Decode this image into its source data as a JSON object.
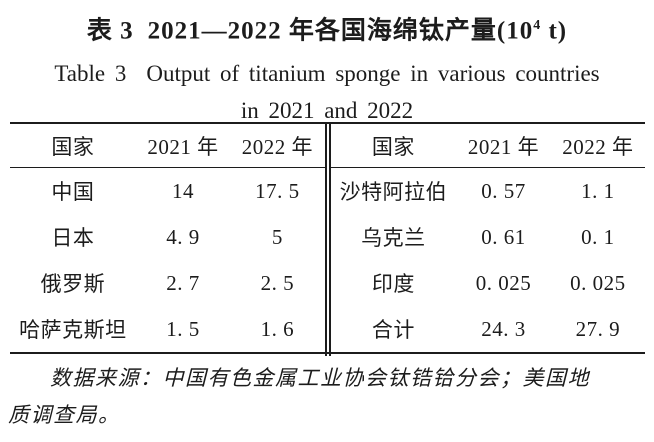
{
  "title": {
    "zh_label": "表 3",
    "zh_main": "2021—2022 年各国海绵钛产量(10",
    "zh_sup": "4",
    "zh_tail": " t)",
    "en_label": "Table 3",
    "en_main": "Output of titanium sponge in various countries",
    "en_line2": "in 2021 and 2022"
  },
  "table": {
    "left": {
      "headers": [
        "国家",
        "2021 年",
        "2022 年"
      ],
      "rows": [
        [
          "中国",
          "14",
          "17. 5"
        ],
        [
          "日本",
          "4. 9",
          "5"
        ],
        [
          "俄罗斯",
          "2. 7",
          "2. 5"
        ],
        [
          "哈萨克斯坦",
          "1. 5",
          "1. 6"
        ]
      ]
    },
    "right": {
      "headers": [
        "国家",
        "2021 年",
        "2022 年"
      ],
      "rows": [
        [
          "沙特阿拉伯",
          "0. 57",
          "1. 1"
        ],
        [
          "乌克兰",
          "0. 61",
          "0. 1"
        ],
        [
          "印度",
          "0. 025",
          "0. 025"
        ],
        [
          "合计",
          "24. 3",
          "27. 9"
        ]
      ]
    }
  },
  "source": {
    "line1": "数据来源：中国有色金属工业协会钛锆铪分会；美国地",
    "line2": "质调查局。"
  },
  "colors": {
    "text": "#1c1c1c",
    "background": "#ffffff",
    "rule": "#1c1c1c"
  }
}
